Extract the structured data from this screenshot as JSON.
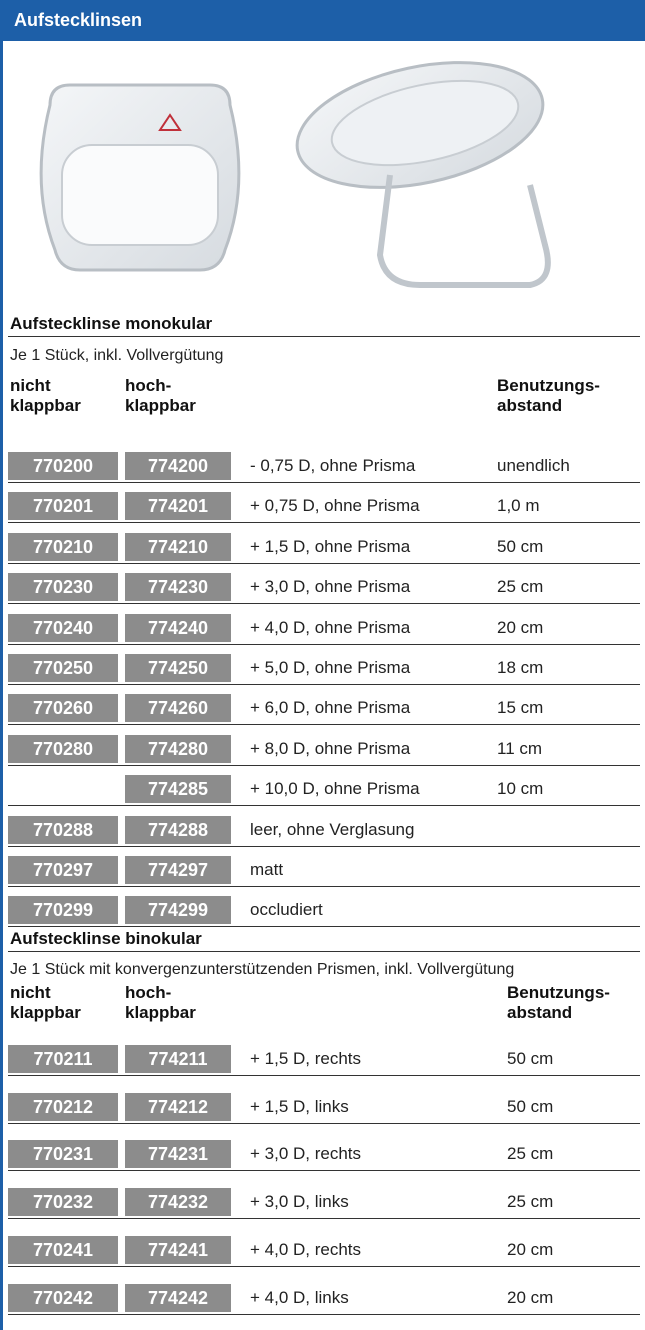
{
  "header": {
    "title": "Aufstecklinsen"
  },
  "sections": [
    {
      "title": "Aufstecklinse monokular",
      "subtitle": "Je 1 Stück, inkl. Vollvergütung",
      "columns": [
        [
          "nicht",
          "klappbar"
        ],
        [
          "hoch-",
          "klappbar"
        ],
        [
          "Benutzungs-",
          "abstand"
        ]
      ],
      "rows": [
        [
          "770200",
          "774200",
          "- 0,75 D, ohne Prisma",
          "unendlich"
        ],
        [
          "770201",
          "774201",
          "+ 0,75 D, ohne Prisma",
          "1,0 m"
        ],
        [
          "770210",
          "774210",
          "+ 1,5 D, ohne Prisma",
          "50 cm"
        ],
        [
          "770230",
          "774230",
          "+ 3,0 D, ohne Prisma",
          "25 cm"
        ],
        [
          "770240",
          "774240",
          "+ 4,0 D, ohne Prisma",
          "20 cm"
        ],
        [
          "770250",
          "774250",
          "+ 5,0 D, ohne Prisma",
          "18 cm"
        ],
        [
          "770260",
          "774260",
          "+ 6,0 D, ohne Prisma",
          "15 cm"
        ],
        [
          "770280",
          "774280",
          "+ 8,0 D, ohne Prisma",
          "11 cm"
        ],
        [
          null,
          "774285",
          "+ 10,0 D, ohne Prisma",
          "10 cm"
        ],
        [
          "770288",
          "774288",
          "leer, ohne Verglasung",
          null
        ],
        [
          "770297",
          "774297",
          "matt",
          null
        ],
        [
          "770299",
          "774299",
          "occludiert",
          null
        ]
      ]
    },
    {
      "title": "Aufstecklinse binokular",
      "subtitle": "Je 1 Stück mit konvergenzunterstützenden Prismen, inkl. Vollvergütung",
      "columns": [
        [
          "nicht",
          "klappbar"
        ],
        [
          "hoch-",
          "klappbar"
        ],
        [
          "Benutzungs-",
          "abstand"
        ]
      ],
      "rows": [
        [
          "770211",
          "774211",
          "+ 1,5 D, rechts",
          "50 cm"
        ],
        [
          "770212",
          "774212",
          "+ 1,5 D, links",
          "50 cm"
        ],
        [
          "770231",
          "774231",
          "+ 3,0 D, rechts",
          "25 cm"
        ],
        [
          "770232",
          "774232",
          "+ 3,0 D, links",
          "25 cm"
        ],
        [
          "770241",
          "774241",
          "+ 4,0 D, rechts",
          "20 cm"
        ],
        [
          "770242",
          "774242",
          "+ 4,0 D, links",
          "20 cm"
        ]
      ]
    }
  ]
}
